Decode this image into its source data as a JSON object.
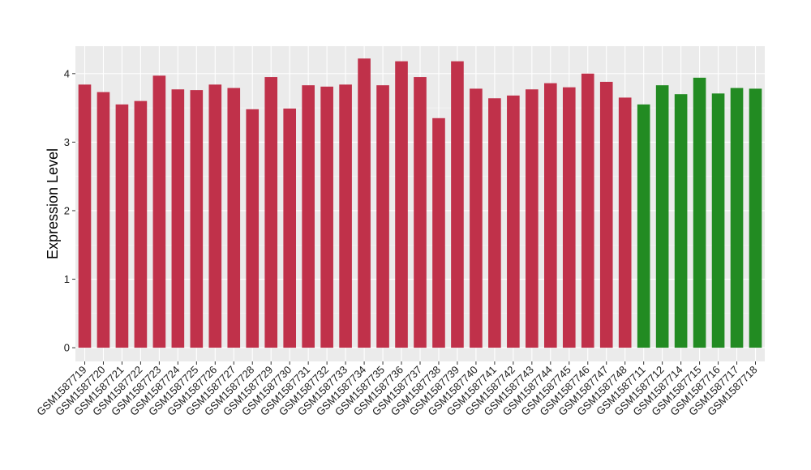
{
  "chart_data": {
    "type": "bar",
    "title": "",
    "xlabel": "",
    "ylabel": "Expression Level",
    "ylim": [
      -0.2,
      4.4
    ],
    "yticks": [
      0,
      1,
      2,
      3,
      4
    ],
    "grid": true,
    "background": "#ebebeb",
    "colors": {
      "group_a": "#c0314a",
      "group_b": "#228b22"
    },
    "categories": [
      "GSM1587719",
      "GSM1587720",
      "GSM1587721",
      "GSM1587722",
      "GSM1587723",
      "GSM1587724",
      "GSM1587725",
      "GSM1587726",
      "GSM1587727",
      "GSM1587728",
      "GSM1587729",
      "GSM1587730",
      "GSM1587731",
      "GSM1587732",
      "GSM1587733",
      "GSM1587734",
      "GSM1587735",
      "GSM1587736",
      "GSM1587737",
      "GSM1587738",
      "GSM1587739",
      "GSM1587740",
      "GSM1587741",
      "GSM1587742",
      "GSM1587743",
      "GSM1587744",
      "GSM1587745",
      "GSM1587746",
      "GSM1587747",
      "GSM1587748",
      "GSM1587711",
      "GSM1587712",
      "GSM1587714",
      "GSM1587715",
      "GSM1587716",
      "GSM1587717",
      "GSM1587718"
    ],
    "values": [
      3.84,
      3.73,
      3.55,
      3.6,
      3.97,
      3.77,
      3.76,
      3.84,
      3.79,
      3.48,
      3.95,
      3.49,
      3.83,
      3.81,
      3.84,
      4.22,
      3.83,
      4.18,
      3.95,
      3.35,
      4.18,
      3.78,
      3.64,
      3.68,
      3.77,
      3.86,
      3.8,
      4.0,
      3.88,
      3.65,
      3.55,
      3.83,
      3.7,
      3.94,
      3.71,
      3.79,
      3.78
    ],
    "groups": [
      "a",
      "a",
      "a",
      "a",
      "a",
      "a",
      "a",
      "a",
      "a",
      "a",
      "a",
      "a",
      "a",
      "a",
      "a",
      "a",
      "a",
      "a",
      "a",
      "a",
      "a",
      "a",
      "a",
      "a",
      "a",
      "a",
      "a",
      "a",
      "a",
      "a",
      "b",
      "b",
      "b",
      "b",
      "b",
      "b",
      "b"
    ]
  }
}
